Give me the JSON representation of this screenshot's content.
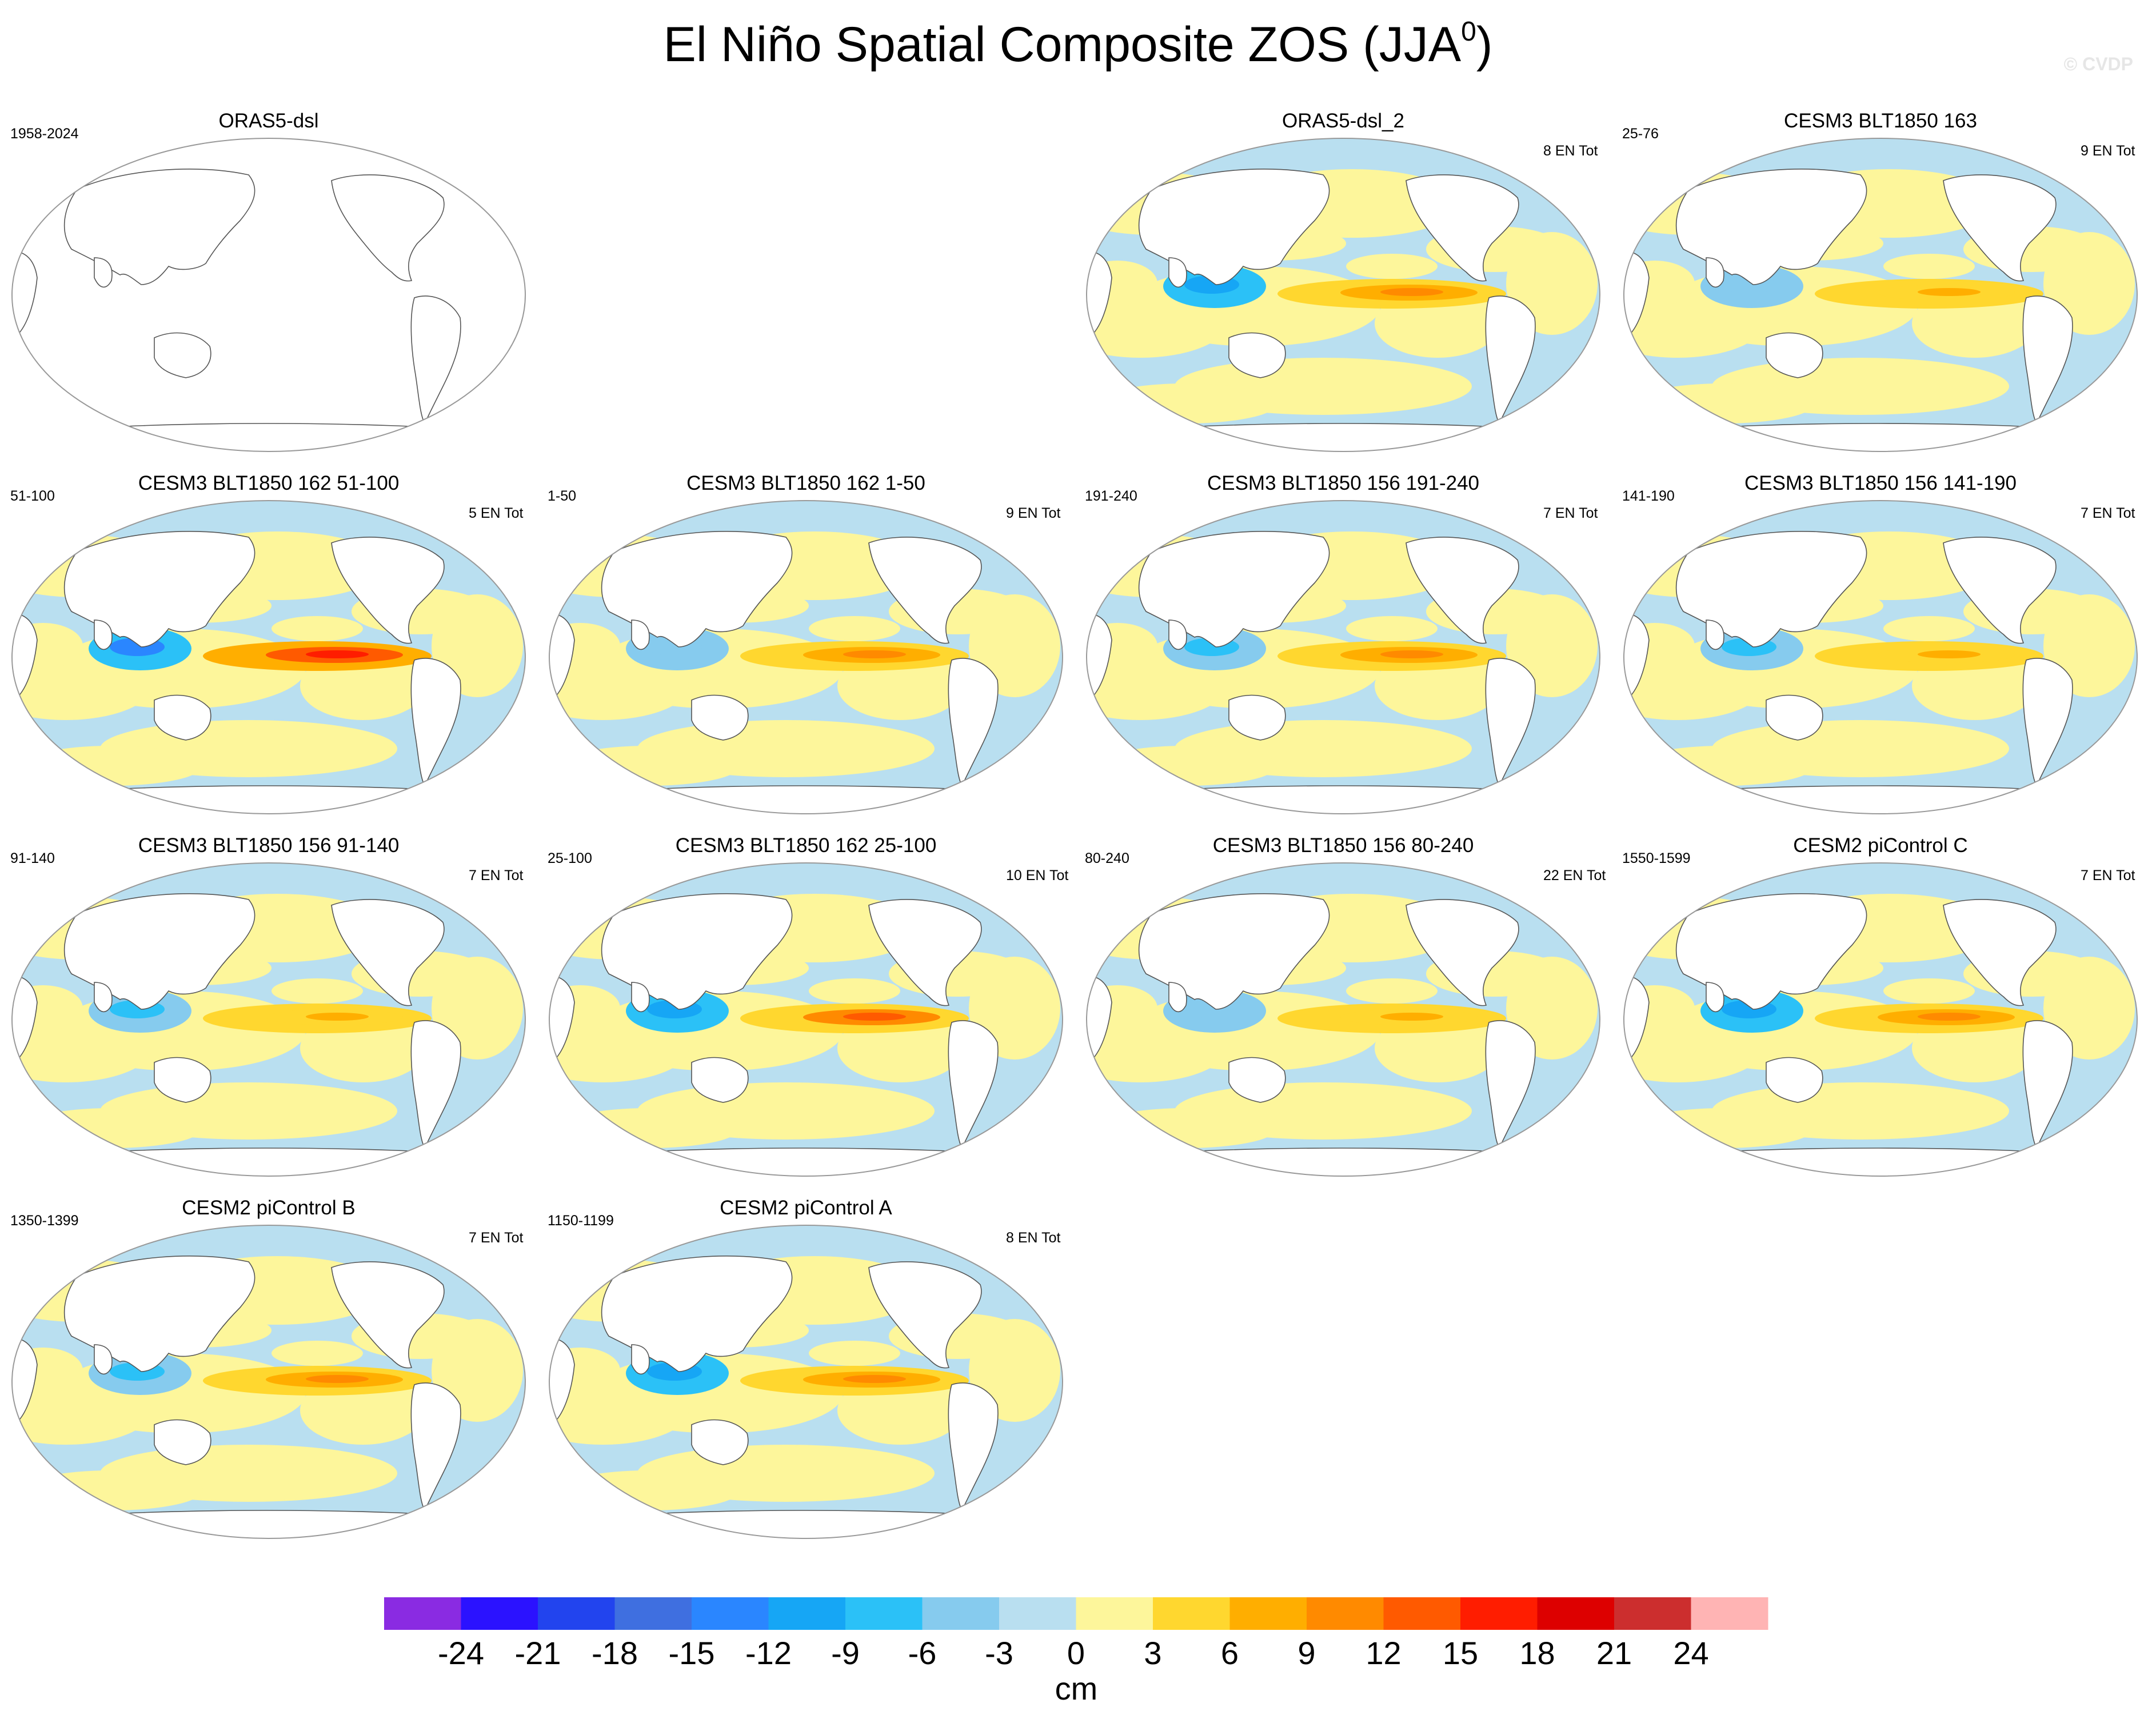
{
  "figure": {
    "title": "El Niño Spatial Composite ZOS (JJA",
    "title_sup": "0",
    "title_close": ")",
    "watermark": "© CVDP"
  },
  "panels": [
    {
      "id": "orasdsl",
      "title": "ORAS5-dsl",
      "period": "1958-2024",
      "count": "",
      "has_data": false
    },
    {
      "id": "orasdsl2",
      "title": "ORAS5-dsl_2",
      "period": "",
      "count": "8 EN Tot",
      "has_data": true
    },
    {
      "id": "c3_163",
      "title": "CESM3 BLT1850 163",
      "period": "25-76",
      "count": "9 EN Tot",
      "has_data": true
    },
    {
      "id": "c3_162_51",
      "title": "CESM3 BLT1850 162 51-100",
      "period": "51-100",
      "count": "5 EN Tot",
      "has_data": true
    },
    {
      "id": "c3_162_1",
      "title": "CESM3 BLT1850 162 1-50",
      "period": "1-50",
      "count": "9 EN Tot",
      "has_data": true
    },
    {
      "id": "c3_156_191",
      "title": "CESM3 BLT1850 156 191-240",
      "period": "191-240",
      "count": "7 EN Tot",
      "has_data": true
    },
    {
      "id": "c3_156_141",
      "title": "CESM3 BLT1850 156 141-190",
      "period": "141-190",
      "count": "7 EN Tot",
      "has_data": true
    },
    {
      "id": "c3_156_91",
      "title": "CESM3 BLT1850 156 91-140",
      "period": "91-140",
      "count": "7 EN Tot",
      "has_data": true
    },
    {
      "id": "c3_162_25",
      "title": "CESM3 BLT1850 162 25-100",
      "period": "25-100",
      "count": "10 EN Tot",
      "has_data": true
    },
    {
      "id": "c3_156_80",
      "title": "CESM3 BLT1850 156 80-240",
      "period": "80-240",
      "count": "22 EN Tot",
      "has_data": true
    },
    {
      "id": "c2_C",
      "title": "CESM2 piControl C",
      "period": "1550-1599",
      "count": "7 EN Tot",
      "has_data": true
    },
    {
      "id": "c2_B",
      "title": "CESM2 piControl B",
      "period": "1350-1399",
      "count": "7 EN Tot",
      "has_data": true
    },
    {
      "id": "c2_A",
      "title": "CESM2 piControl A",
      "period": "1150-1199",
      "count": "8 EN Tot",
      "has_data": true
    }
  ],
  "chart_data": {
    "type": "heatmap",
    "title": "El Niño Spatial Composite ZOS (JJA0)",
    "variable": "ZOS",
    "season": "JJA",
    "units": "cm",
    "projection": "Robinson, Pacific-centered",
    "panels": [
      {
        "name": "ORAS5-dsl",
        "years": "1958-2024",
        "events": null,
        "data": "none (blank map)",
        "east_pacific_peak_cm": null,
        "west_pacific_min_cm": null
      },
      {
        "name": "ORAS5-dsl_2",
        "years": "",
        "events": 8,
        "east_pacific_peak_cm": 10,
        "west_pacific_min_cm": -12
      },
      {
        "name": "CESM3 BLT1850 163",
        "years": "25-76",
        "events": 9,
        "east_pacific_peak_cm": 6,
        "west_pacific_min_cm": -6
      },
      {
        "name": "CESM3 BLT1850 162 51-100",
        "years": "51-100",
        "events": 5,
        "east_pacific_peak_cm": 16,
        "west_pacific_min_cm": -15
      },
      {
        "name": "CESM3 BLT1850 162 1-50",
        "years": "1-50",
        "events": 9,
        "east_pacific_peak_cm": 9,
        "west_pacific_min_cm": -6
      },
      {
        "name": "CESM3 BLT1850 156 191-240",
        "years": "191-240",
        "events": 7,
        "east_pacific_peak_cm": 10,
        "west_pacific_min_cm": -9
      },
      {
        "name": "CESM3 BLT1850 156 141-190",
        "years": "141-190",
        "events": 7,
        "east_pacific_peak_cm": 6,
        "west_pacific_min_cm": -9
      },
      {
        "name": "CESM3 BLT1850 156 91-140",
        "years": "91-140",
        "events": 7,
        "east_pacific_peak_cm": 6,
        "west_pacific_min_cm": -9
      },
      {
        "name": "CESM3 BLT1850 162 25-100",
        "years": "25-100",
        "events": 10,
        "east_pacific_peak_cm": 12,
        "west_pacific_min_cm": -12
      },
      {
        "name": "CESM3 BLT1850 156 80-240",
        "years": "80-240",
        "events": 22,
        "east_pacific_peak_cm": 6,
        "west_pacific_min_cm": -6
      },
      {
        "name": "CESM2 piControl C",
        "years": "1550-1599",
        "events": 7,
        "east_pacific_peak_cm": 9,
        "west_pacific_min_cm": -12
      },
      {
        "name": "CESM2 piControl B",
        "years": "1350-1399",
        "events": 7,
        "east_pacific_peak_cm": 10,
        "west_pacific_min_cm": -9
      },
      {
        "name": "CESM2 piControl A",
        "years": "1150-1199",
        "events": 8,
        "east_pacific_peak_cm": 9,
        "west_pacific_min_cm": -12
      }
    ],
    "colorbar": {
      "label": "cm",
      "levels": [
        -24,
        -21,
        -18,
        -15,
        -12,
        -9,
        -6,
        -3,
        0,
        3,
        6,
        9,
        12,
        15,
        18,
        21,
        24
      ],
      "colors": [
        "#8a2be2",
        "#2b12ff",
        "#2244ee",
        "#3f6fe0",
        "#2a86ff",
        "#16a6f5",
        "#2bc1f7",
        "#86cbee",
        "#b9dff0",
        "#fdf69b",
        "#ffd72f",
        "#ffae00",
        "#ff8a00",
        "#ff5a00",
        "#ff1d00",
        "#dd0000",
        "#cc2e2e",
        "#ffb4b4"
      ]
    }
  }
}
